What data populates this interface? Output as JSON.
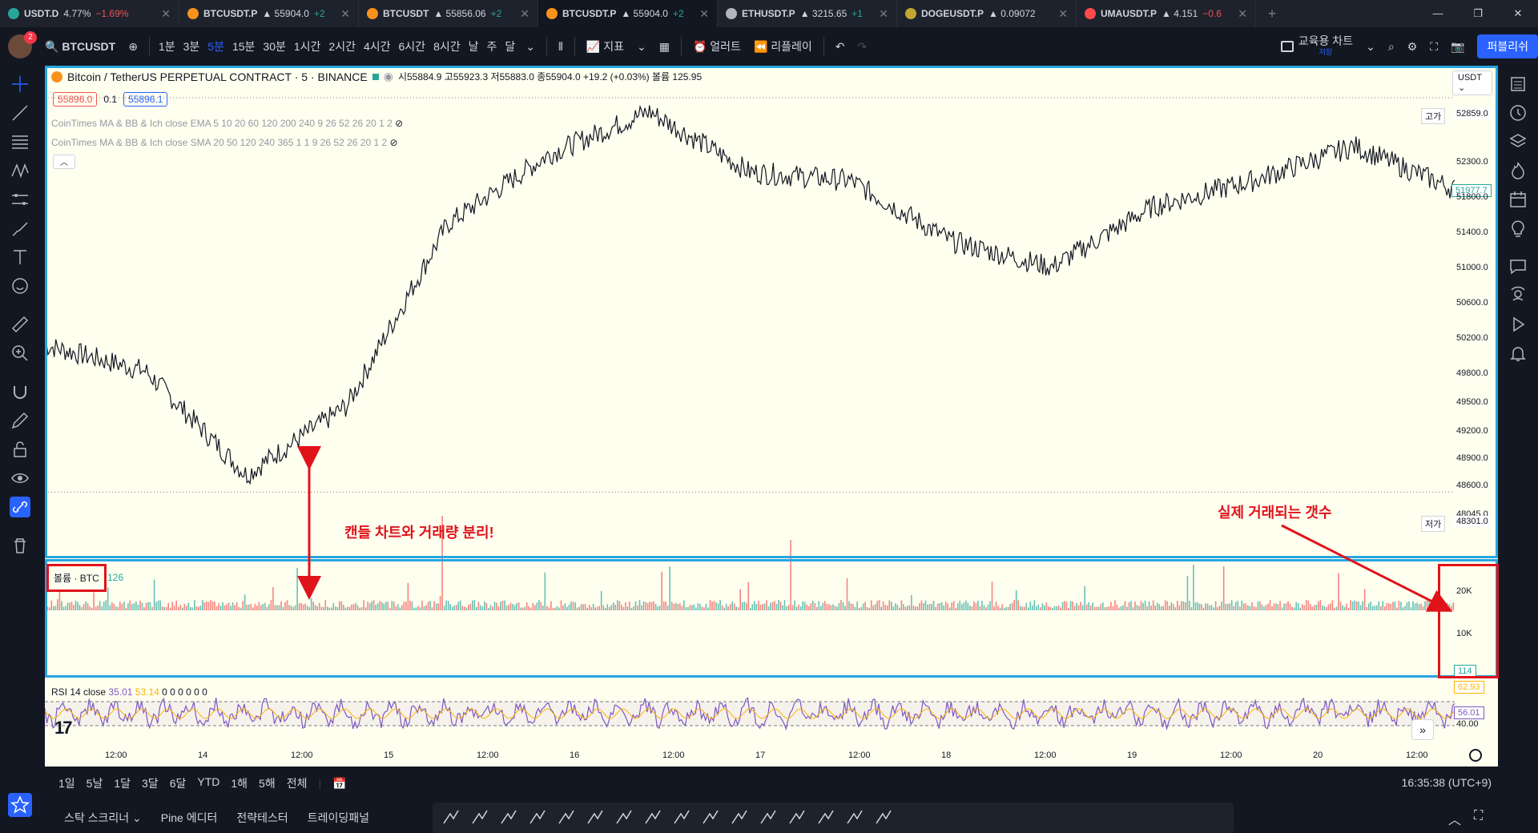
{
  "tabs": [
    {
      "symbol": "USDT.D",
      "price": "4.77%",
      "change": "−1.69%",
      "dir": "down",
      "color": "#26a69a"
    },
    {
      "symbol": "BTCUSDT.P",
      "price": "▲ 55904.0",
      "change": "+2",
      "dir": "up",
      "color": "#f7931a"
    },
    {
      "symbol": "BTCUSDT",
      "price": "▲ 55856.06",
      "change": "+2",
      "dir": "up",
      "color": "#f7931a"
    },
    {
      "symbol": "BTCUSDT.P",
      "price": "▲ 55904.0",
      "change": "+2",
      "dir": "up",
      "color": "#f7931a",
      "active": true
    },
    {
      "symbol": "ETHUSDT.P",
      "price": "▲ 3215.65",
      "change": "+1",
      "dir": "up",
      "color": "#b2b5be"
    },
    {
      "symbol": "DOGEUSDT.P",
      "price": "▲ 0.09072",
      "change": "",
      "dir": "up",
      "color": "#c2a633"
    },
    {
      "symbol": "UMAUSDT.P",
      "price": "▲ 4.151",
      "change": "−0.6",
      "dir": "down",
      "color": "#ff4a4a"
    }
  ],
  "toolbar": {
    "avatar_badge": "2",
    "symbol": "BTCUSDT",
    "intervals": [
      "1분",
      "3분",
      "5분",
      "15분",
      "30분",
      "1시간",
      "2시간",
      "4시간",
      "6시간",
      "8시간",
      "날",
      "주",
      "달"
    ],
    "active_interval": "5분",
    "indicators": "지표",
    "alert": "얼러트",
    "replay": "리플레이",
    "layout_name": "교육용 차트",
    "layout_sub": "저장",
    "publish": "퍼블리쉬"
  },
  "legend": {
    "title": "Bitcoin / TetherUS PERPETUAL CONTRACT · 5 · BINANCE",
    "ohlc": "시55884.9 고55923.3 저55883.0 종55904.0 +19.2 (+0.03%) 볼륨 125.95",
    "bid": "55896.0",
    "spread": "0.1",
    "ask": "55896.1",
    "ind1": "CoinTimes MA & BB & Ich close EMA 5 10 20 60 120 200 240 9 26 52 26 20 1 2",
    "ind2": "CoinTimes MA & BB & Ich close SMA 20 50 120 240 365 1 1 9 26 52 26 20 1 2",
    "currency": "USDT"
  },
  "yaxis": {
    "high_label": "고가",
    "high_value": "52859.0",
    "low_label": "저가",
    "low_value": "48301.0",
    "last": "51977.7",
    "ticks": [
      "52300.0",
      "51800.0",
      "51400.0",
      "51000.0",
      "50600.0",
      "50200.0",
      "49800.0",
      "49500.0",
      "49200.0",
      "48900.0",
      "48600.0",
      "48045.0"
    ]
  },
  "volume": {
    "label": "볼륨 · BTC",
    "value": "126",
    "ticks": [
      "20K",
      "10K"
    ],
    "last": "114"
  },
  "rsi": {
    "label": "RSI 14 close",
    "v1": "35.01",
    "v2": "53.14",
    "zeros": "0 0 0 0 0 0",
    "ticks": [
      "62.93",
      "56.01",
      "40.00"
    ]
  },
  "xaxis": [
    "12:00",
    "14",
    "12:00",
    "15",
    "12:00",
    "16",
    "12:00",
    "17",
    "12:00",
    "18",
    "12:00",
    "19",
    "12:00",
    "20",
    "12:00"
  ],
  "annotations": {
    "left": "캔들 차트와 거래량 분리!",
    "right": "실제 거래되는 갯수"
  },
  "bottom": {
    "ranges": [
      "1일",
      "5날",
      "1달",
      "3달",
      "6달",
      "YTD",
      "1해",
      "5해",
      "전체"
    ],
    "clock": "16:35:38 (UTC+9)"
  },
  "panels": [
    "스탁 스크리너",
    "Pine 에디터",
    "전략테스터",
    "트레이딩패널"
  ],
  "chart_data": {
    "type": "line",
    "title": "Bitcoin / TetherUS PERPETUAL CONTRACT · 5 · BINANCE",
    "x": [
      "13 12:00",
      "14",
      "14 12:00",
      "15",
      "15 12:00",
      "16",
      "16 12:00",
      "17",
      "17 12:00",
      "18",
      "18 12:00",
      "19",
      "19 12:00",
      "20",
      "20 12:00"
    ],
    "series": [
      {
        "values": [
          50000,
          49700,
          48500,
          49300,
          51400,
          52200,
          52700,
          52000,
          51900,
          51200,
          50900,
          51600,
          51900,
          52300,
          51800
        ]
      }
    ],
    "ylim": [
      48045,
      52859
    ]
  }
}
